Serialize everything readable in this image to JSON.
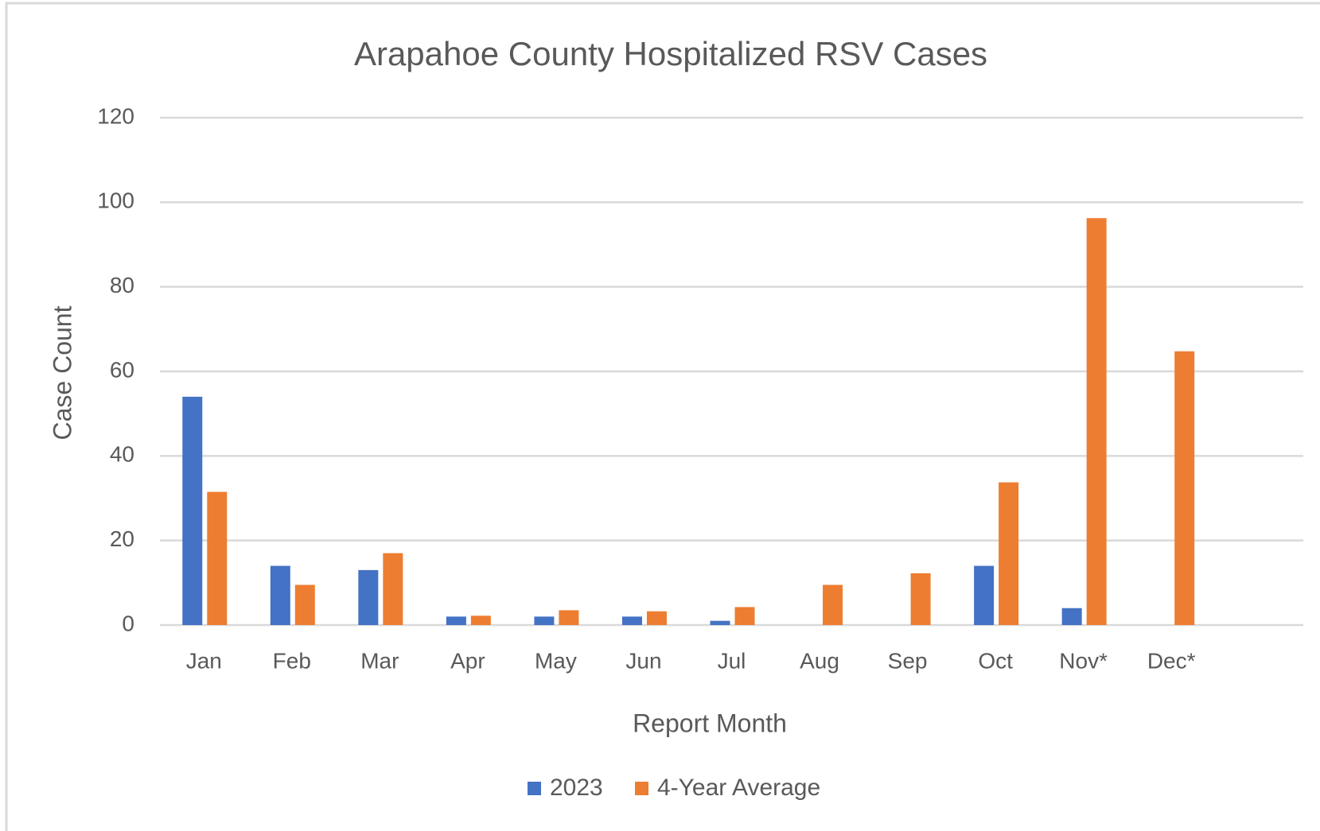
{
  "chart_data": {
    "type": "bar",
    "title": "Arapahoe County Hospitalized RSV Cases",
    "x_label": "Report Month",
    "y_label": "Case Count",
    "categories": [
      "Jan",
      "Feb",
      "Mar",
      "Apr",
      "May",
      "Jun",
      "Jul",
      "Aug",
      "Sep",
      "Oct",
      "Nov*",
      "Dec*"
    ],
    "series": [
      {
        "name": "2023",
        "color": "#4472c4",
        "values": [
          54,
          14,
          13,
          2,
          2,
          2,
          1,
          0,
          0,
          14,
          4,
          null
        ]
      },
      {
        "name": "4-Year Average",
        "color": "#ed7d31",
        "values": [
          31.5,
          9.5,
          17,
          2.2,
          3.5,
          3.25,
          4.25,
          9.5,
          12.25,
          33.75,
          96.25,
          64.75
        ]
      }
    ],
    "ylim": [
      0,
      120
    ],
    "yticks": [
      0,
      20,
      40,
      60,
      80,
      100,
      120
    ],
    "grid": true,
    "legend": "bottom"
  }
}
